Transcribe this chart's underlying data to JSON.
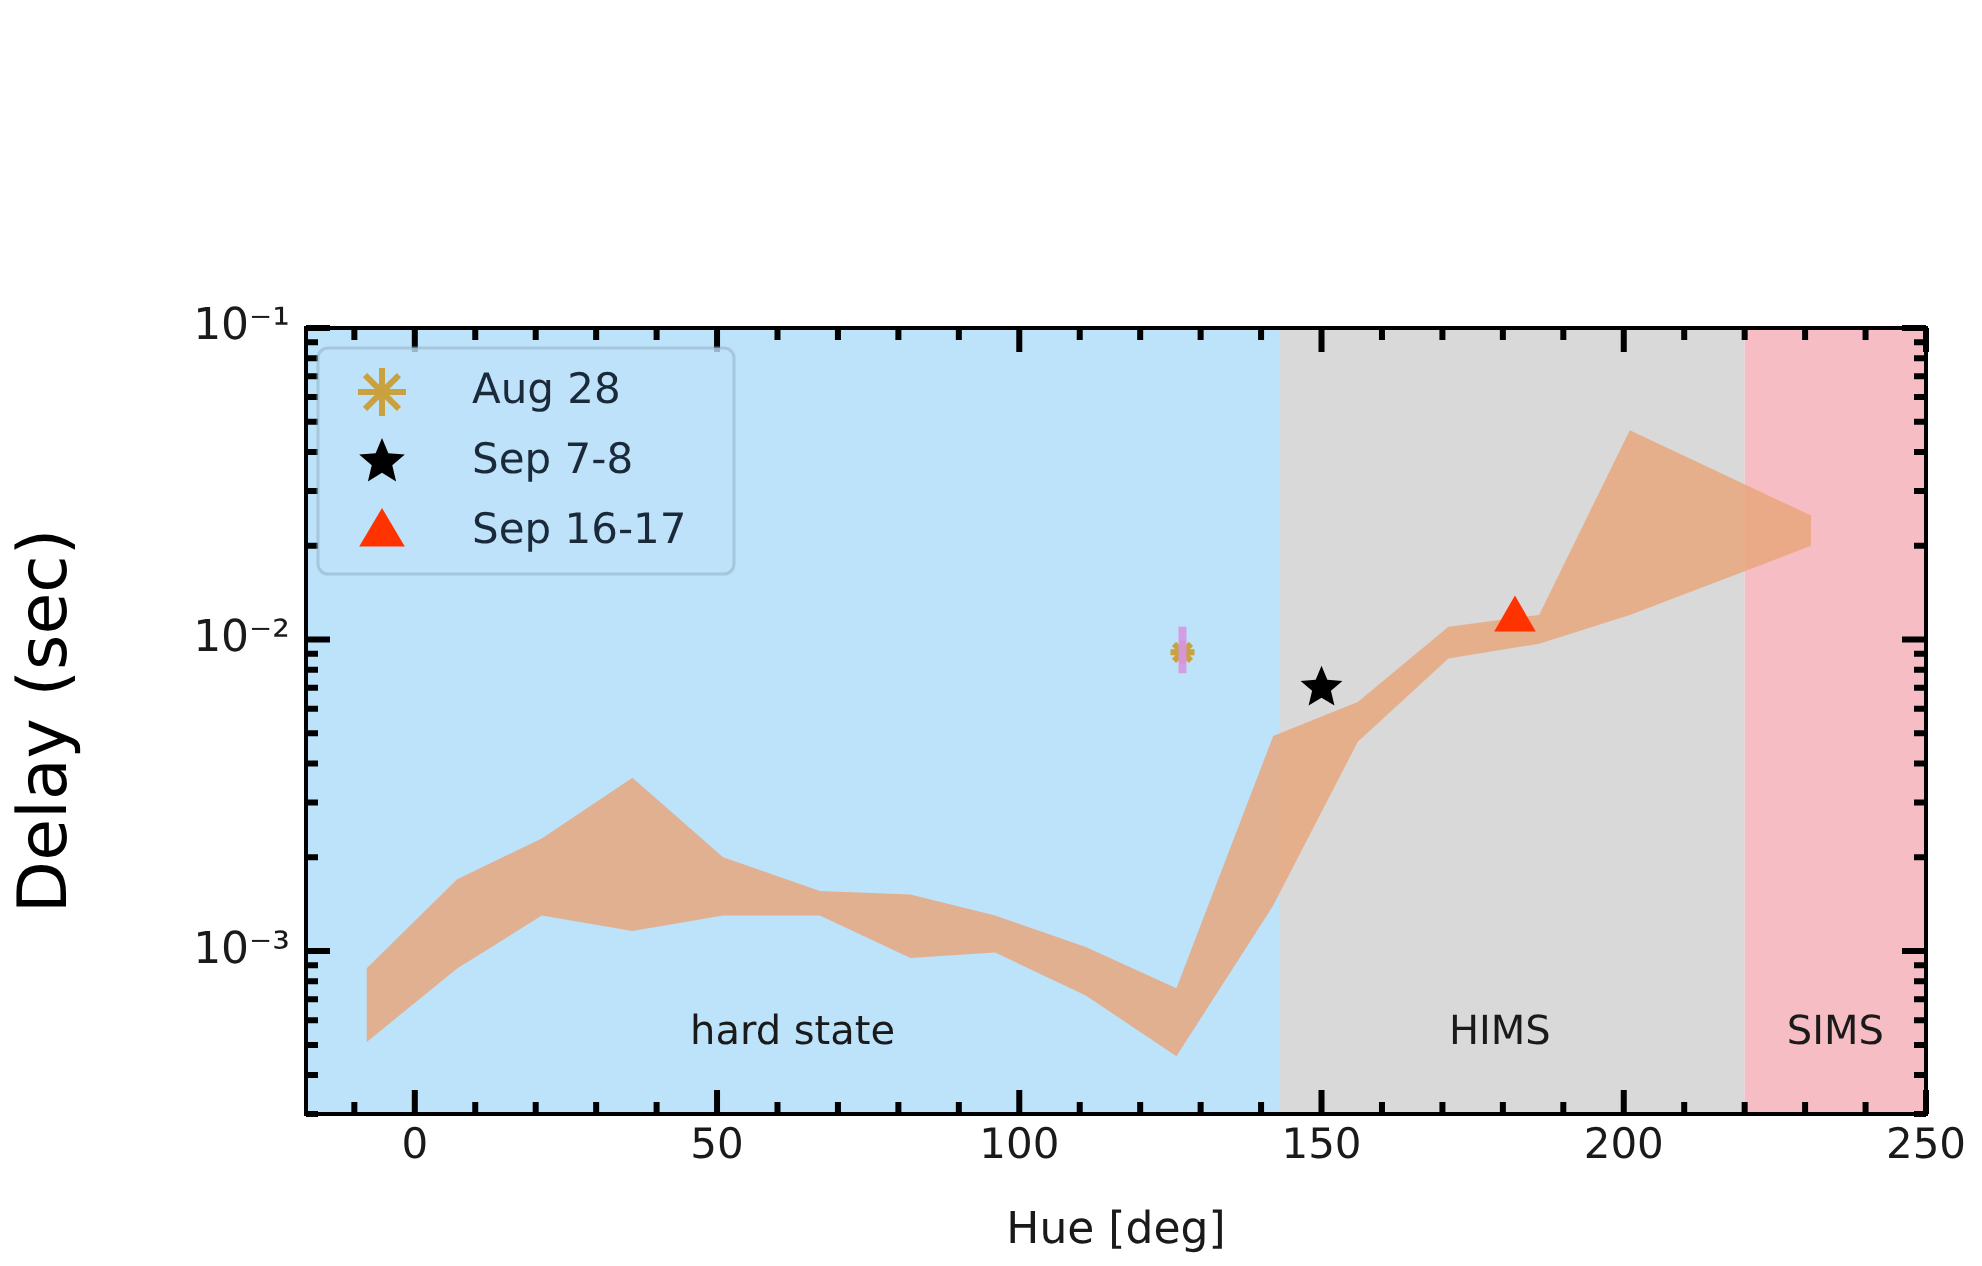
{
  "chart_data": {
    "type": "scatter",
    "xlabel": "Hue [deg]",
    "ylabel": "Delay (sec)",
    "log": "y",
    "legend": "top left",
    "xlim": [
      -18,
      250
    ],
    "xticks": [
      0,
      50,
      100,
      150,
      200,
      250
    ],
    "ylim": [
      0.0003,
      0.1
    ],
    "yticks": [
      {
        "value": 0.001,
        "label": "10⁻³"
      },
      {
        "value": 0.01,
        "label": "10⁻²"
      },
      {
        "value": 0.1,
        "label": "10⁻¹"
      }
    ],
    "bands": [
      {
        "axis": "x",
        "from": 139,
        "to": 220,
        "label": "HIMS",
        "color": "#d9d9d9"
      },
      {
        "axis": "x",
        "from": -18,
        "to": 143,
        "label": "hard state",
        "color": "#bde3fb"
      },
      {
        "axis": "x",
        "from": 220,
        "to": 250,
        "label": "SIMS",
        "color": "#f7bdc4"
      }
    ],
    "series": [
      {
        "type": "area",
        "color": "#e8a77c",
        "x": [
          -8,
          7,
          21,
          36,
          51,
          67,
          82,
          96,
          111,
          126,
          142,
          156,
          171,
          186,
          201,
          231
        ],
        "values": [
          null,
          null,
          null,
          null,
          null,
          null,
          null,
          null,
          null,
          null,
          null,
          null,
          null,
          null,
          null,
          null
        ],
        "lower": [
          0.00051,
          0.00088,
          0.0013,
          0.00116,
          0.0013,
          0.0013,
          0.00095,
          0.00099,
          0.00072,
          0.00046,
          0.0014,
          0.0047,
          0.0087,
          0.0097,
          0.012,
          0.02
        ],
        "upper": [
          0.00088,
          0.0017,
          0.0023,
          0.0036,
          0.002,
          0.00156,
          0.00152,
          0.0013,
          0.00103,
          0.00076,
          0.0049,
          0.0063,
          0.011,
          0.012,
          0.047,
          0.025
        ]
      },
      {
        "name": "Aug 28",
        "type": "scatter",
        "marker": "cross",
        "color": "#c9a23f",
        "x": [
          127
        ],
        "values": [
          0.0091
        ],
        "errors": [
          [
            0.0078,
            0.011
          ]
        ]
      },
      {
        "name": "Sep 7-8",
        "type": "scatter",
        "marker": "star",
        "color": "#000000",
        "x": [
          150
        ],
        "values": [
          0.007
        ]
      },
      {
        "name": "Sep 16-17",
        "type": "scatter",
        "marker": "triangle",
        "color": "#ff3300",
        "x": [
          182
        ],
        "values": [
          0.0116
        ]
      }
    ]
  }
}
